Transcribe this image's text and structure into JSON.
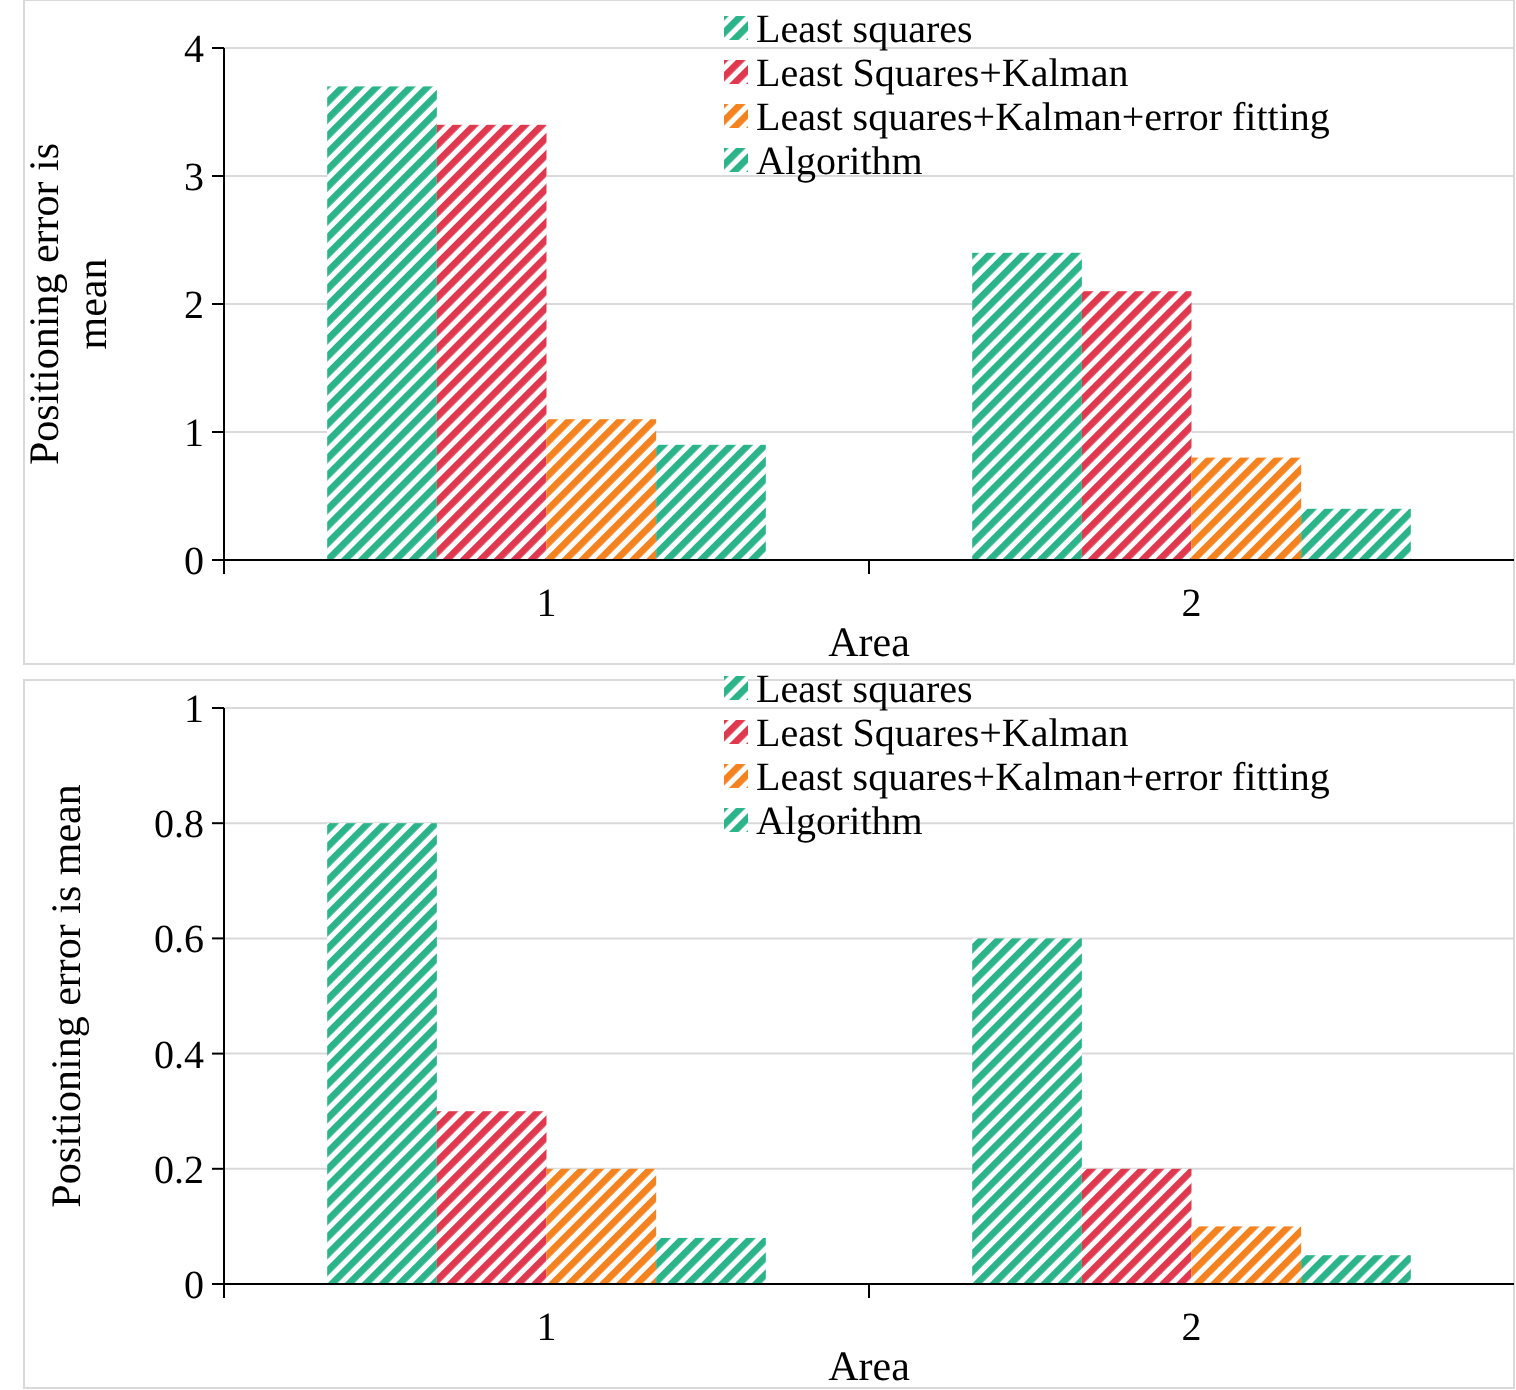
{
  "chart_data": [
    {
      "type": "bar",
      "xlabel": "Area",
      "ylabel": "Positioning error is mean",
      "categories": [
        "1",
        "2"
      ],
      "series": [
        {
          "name": "Least squares",
          "color": "#2bb48a",
          "values": [
            3.7,
            2.4
          ]
        },
        {
          "name": "Least Squares+Kalman",
          "color": "#e0394f",
          "values": [
            3.4,
            2.1
          ]
        },
        {
          "name": "Least squares+Kalman+error fitting",
          "color": "#f4821f",
          "values": [
            1.1,
            0.8
          ]
        },
        {
          "name": "Algorithm",
          "color": "#2bb48a",
          "values": [
            0.9,
            0.4
          ]
        }
      ],
      "ylim": [
        0,
        4
      ],
      "yticks": [
        0,
        1,
        2,
        3,
        4
      ],
      "grid": "y",
      "legend": "top right"
    },
    {
      "type": "bar",
      "xlabel": "Area",
      "ylabel": "Positioning error is mean",
      "categories": [
        "1",
        "2"
      ],
      "series": [
        {
          "name": "Least squares",
          "color": "#2bb48a",
          "values": [
            0.8,
            0.6
          ]
        },
        {
          "name": "Least Squares+Kalman",
          "color": "#e0394f",
          "values": [
            0.3,
            0.2
          ]
        },
        {
          "name": "Least squares+Kalman+error fitting",
          "color": "#f4821f",
          "values": [
            0.2,
            0.1
          ]
        },
        {
          "name": "Algorithm",
          "color": "#2bb48a",
          "values": [
            0.08,
            0.05
          ]
        }
      ],
      "ylim": [
        0,
        1
      ],
      "yticks": [
        0,
        0.2,
        0.4,
        0.6,
        0.8,
        1
      ],
      "grid": "y",
      "legend": "top right"
    }
  ]
}
